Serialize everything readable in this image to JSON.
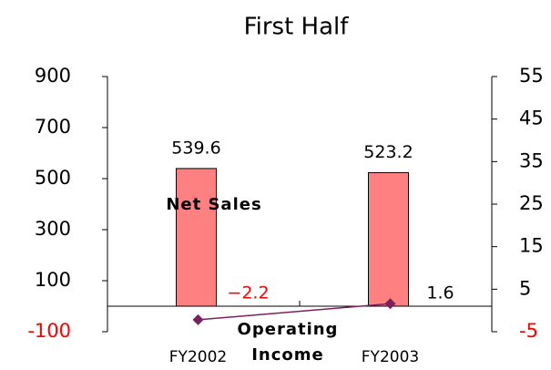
{
  "chart_data": {
    "type": "bar_line",
    "title": "First Half",
    "categories": [
      "FY2002",
      "FY2003"
    ],
    "series": [
      {
        "name": "Net Sales",
        "type": "bar",
        "color": "#ff8080",
        "values": [
          539.6,
          523.2
        ]
      },
      {
        "name": "Operating Income",
        "type": "line",
        "axis": "y2",
        "color": "#7b1f5e",
        "values": [
          -2.2,
          1.6
        ],
        "value_labels": [
          "−2.2",
          "1.6"
        ]
      }
    ],
    "ylim": [
      -100,
      900
    ],
    "yticks": [
      -100,
      100,
      300,
      500,
      700,
      900
    ],
    "y2lim": [
      -5,
      55
    ],
    "y2ticks": [
      -5,
      5,
      15,
      25,
      35,
      45,
      55
    ],
    "negative_color": "#ff0000"
  }
}
